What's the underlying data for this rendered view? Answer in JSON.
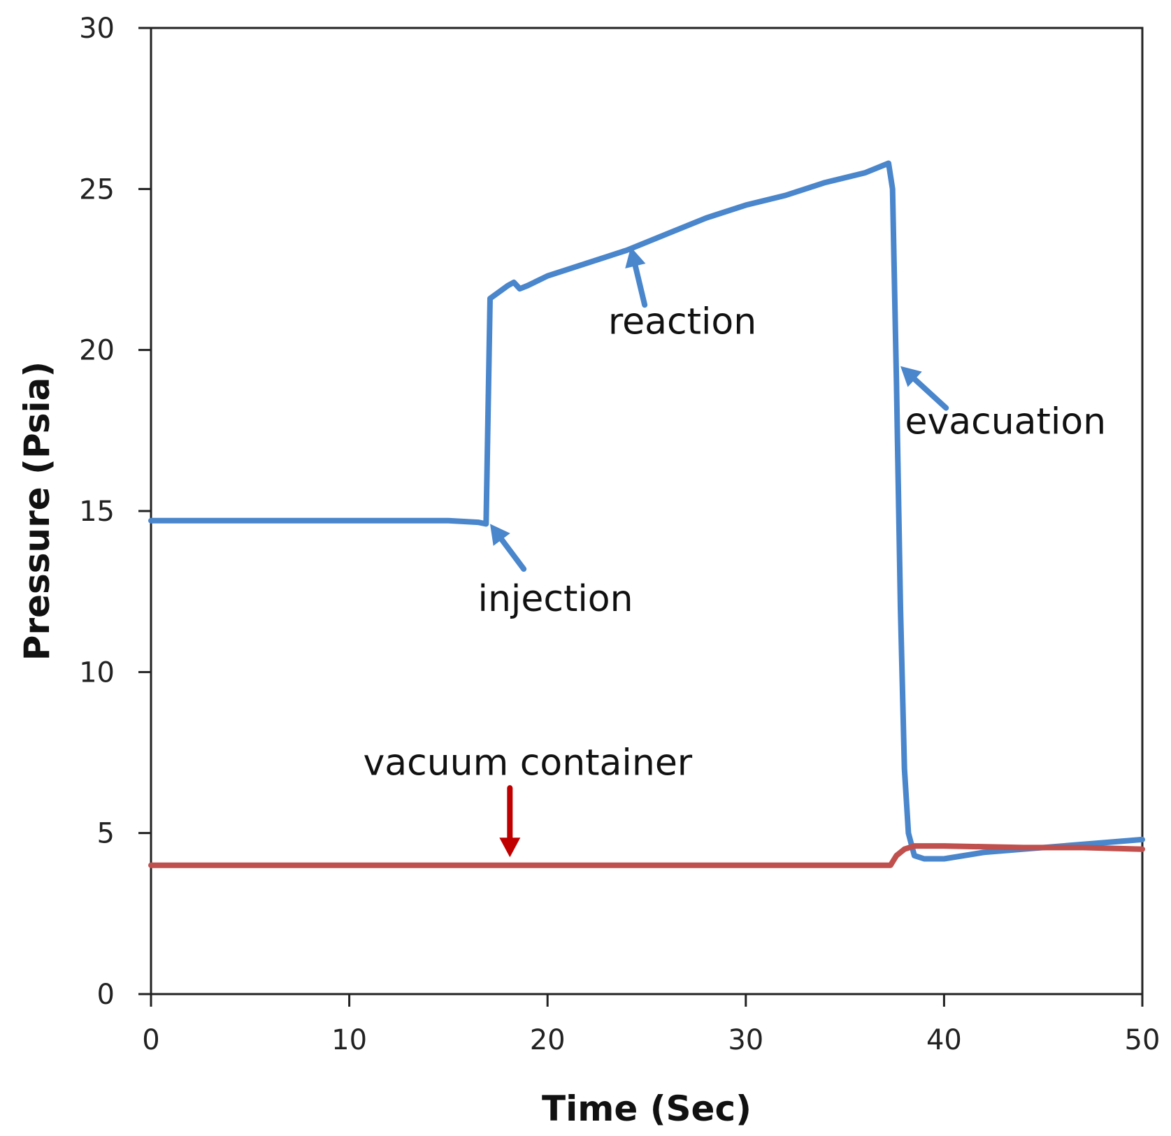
{
  "chart_data": {
    "type": "line",
    "xlabel": "Time (Sec)",
    "ylabel": "Pressure (Psia)",
    "xlim": [
      0,
      50
    ],
    "ylim": [
      0,
      30
    ],
    "x_ticks": [
      0,
      10,
      20,
      30,
      40,
      50
    ],
    "y_ticks": [
      0,
      5,
      10,
      15,
      20,
      25,
      30
    ],
    "grid": false,
    "legend": "none",
    "series": [
      {
        "color": "#4a86cc",
        "points": [
          [
            0,
            14.7
          ],
          [
            5,
            14.7
          ],
          [
            10,
            14.7
          ],
          [
            15,
            14.7
          ],
          [
            16.5,
            14.65
          ],
          [
            16.9,
            14.6
          ],
          [
            17.1,
            21.6
          ],
          [
            18,
            22.0
          ],
          [
            18.3,
            22.1
          ],
          [
            18.6,
            21.9
          ],
          [
            19,
            22.0
          ],
          [
            20,
            22.3
          ],
          [
            22,
            22.7
          ],
          [
            24,
            23.1
          ],
          [
            26,
            23.6
          ],
          [
            28,
            24.1
          ],
          [
            30,
            24.5
          ],
          [
            32,
            24.8
          ],
          [
            34,
            25.2
          ],
          [
            36,
            25.5
          ],
          [
            37.2,
            25.8
          ],
          [
            37.4,
            25.0
          ],
          [
            37.6,
            19.0
          ],
          [
            37.8,
            12.0
          ],
          [
            38.0,
            7.0
          ],
          [
            38.2,
            5.0
          ],
          [
            38.5,
            4.3
          ],
          [
            39,
            4.2
          ],
          [
            40,
            4.2
          ],
          [
            42,
            4.4
          ],
          [
            44,
            4.5
          ],
          [
            46,
            4.6
          ],
          [
            48,
            4.7
          ],
          [
            50,
            4.8
          ]
        ]
      },
      {
        "color": "#c0504d",
        "points": [
          [
            0,
            4.0
          ],
          [
            10,
            4.0
          ],
          [
            20,
            4.0
          ],
          [
            30,
            4.0
          ],
          [
            36,
            4.0
          ],
          [
            37.3,
            4.0
          ],
          [
            37.6,
            4.3
          ],
          [
            38,
            4.5
          ],
          [
            38.5,
            4.6
          ],
          [
            40,
            4.6
          ],
          [
            44,
            4.55
          ],
          [
            47,
            4.55
          ],
          [
            50,
            4.5
          ]
        ]
      }
    ],
    "annotations": [
      {
        "text": "injection",
        "x": 20.4,
        "y": 11.9,
        "arrow_from": [
          18.8,
          13.2
        ],
        "arrow_to": [
          17.1,
          14.6
        ],
        "color": "#4a86cc"
      },
      {
        "text": "reaction",
        "x": 26.8,
        "y": 20.5,
        "arrow_from": [
          24.9,
          21.4
        ],
        "arrow_to": [
          24.2,
          23.2
        ],
        "color": "#4a86cc"
      },
      {
        "text": "evacuation",
        "x": 43.1,
        "y": 17.4,
        "arrow_from": [
          40.1,
          18.2
        ],
        "arrow_to": [
          37.8,
          19.5
        ],
        "color": "#4a86cc"
      },
      {
        "text": "vacuum container",
        "x": 19.0,
        "y": 6.8,
        "arrow_from": [
          18.1,
          6.4
        ],
        "arrow_to": [
          18.1,
          4.25
        ],
        "color": "#c00000"
      }
    ]
  }
}
